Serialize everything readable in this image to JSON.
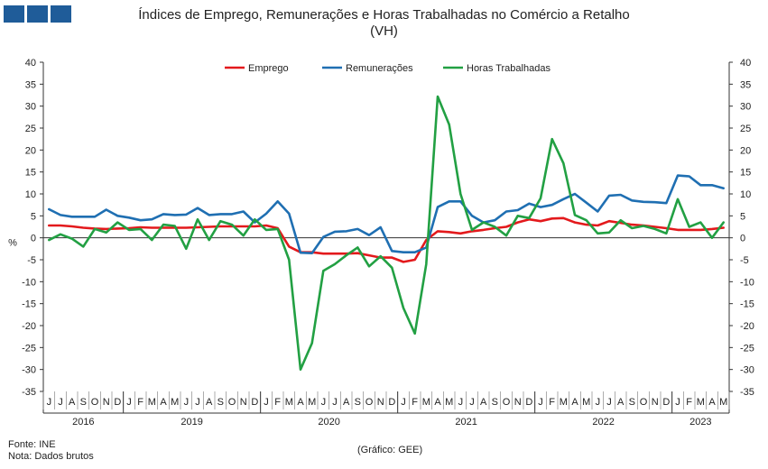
{
  "logo_colors": [
    "#1f5c99",
    "#1f5c99",
    "#1f5c99"
  ],
  "title_line1": "Índices de Emprego, Remunerações e Horas Trabalhadas no Comércio a Retalho",
  "title_line2": "(VH)",
  "source": "Fonte: INE",
  "note": "Nota: Dados brutos",
  "credit": "(Gráfico: GEE)",
  "chart_data": {
    "type": "line",
    "ylabel": "%",
    "ylim": [
      -35,
      40
    ],
    "yticks": [
      -35,
      -30,
      -25,
      -20,
      -15,
      -10,
      -5,
      0,
      5,
      10,
      15,
      20,
      25,
      30,
      35,
      40
    ],
    "legend_position": "top-center",
    "x": [
      "J",
      "J",
      "A",
      "S",
      "O",
      "N",
      "D",
      "J",
      "F",
      "M",
      "A",
      "M",
      "J",
      "J",
      "A",
      "S",
      "O",
      "N",
      "D",
      "J",
      "F",
      "M",
      "A",
      "M",
      "J",
      "J",
      "A",
      "S",
      "O",
      "N",
      "D",
      "J",
      "F",
      "M",
      "A",
      "M",
      "J",
      "J",
      "A",
      "S",
      "O",
      "N",
      "D",
      "J",
      "F",
      "M",
      "A",
      "M",
      "J",
      "J",
      "A",
      "S",
      "O",
      "N",
      "D",
      "J",
      "F",
      "M",
      "A",
      "M"
    ],
    "year_groups": [
      {
        "label": "2016",
        "start": 0,
        "end": 6
      },
      {
        "label": "2019",
        "start": 7,
        "end": 18
      },
      {
        "label": "2020",
        "start": 19,
        "end": 30
      },
      {
        "label": "2021",
        "start": 31,
        "end": 42
      },
      {
        "label": "2022",
        "start": 43,
        "end": 54
      },
      {
        "label": "2023",
        "start": 55,
        "end": 59
      }
    ],
    "series": [
      {
        "name": "Emprego",
        "color": "#e3191c",
        "values": [
          2.8,
          2.8,
          2.6,
          2.3,
          2.1,
          2.0,
          2.1,
          2.2,
          2.4,
          2.3,
          2.3,
          2.3,
          2.3,
          2.4,
          2.5,
          2.6,
          2.6,
          2.6,
          2.6,
          2.8,
          2.2,
          -2.0,
          -3.3,
          -3.3,
          -3.6,
          -3.6,
          -3.6,
          -3.5,
          -4.0,
          -4.5,
          -4.5,
          -5.5,
          -5.0,
          -0.5,
          1.5,
          1.3,
          1.0,
          1.5,
          1.8,
          2.2,
          2.5,
          3.5,
          4.2,
          3.8,
          4.4,
          4.5,
          3.5,
          3.0,
          2.8,
          3.8,
          3.4,
          3.0,
          2.8,
          2.5,
          2.2,
          1.8,
          1.8,
          1.8,
          2.0,
          2.3
        ]
      },
      {
        "name": "Remunerações",
        "color": "#1f6fb2",
        "values": [
          6.5,
          5.2,
          4.8,
          4.8,
          4.8,
          6.4,
          5.0,
          4.6,
          4.0,
          4.2,
          5.4,
          5.2,
          5.3,
          6.8,
          5.2,
          5.4,
          5.4,
          6.0,
          3.5,
          5.5,
          8.3,
          5.5,
          -3.4,
          -3.5,
          0.2,
          1.4,
          1.5,
          2.0,
          0.6,
          2.4,
          -3.0,
          -3.3,
          -3.3,
          -2.2,
          7.0,
          8.3,
          8.3,
          5.0,
          3.5,
          4.0,
          6.0,
          6.3,
          7.8,
          7.0,
          7.5,
          8.8,
          10.0,
          8.0,
          6.0,
          9.6,
          9.8,
          8.5,
          8.2,
          8.1,
          7.9,
          14.2,
          14.0,
          12.0,
          12.0,
          11.3
        ]
      },
      {
        "name": "Horas Trabalhadas",
        "color": "#22a043",
        "values": [
          -0.5,
          0.8,
          -0.2,
          -2.0,
          2.0,
          1.2,
          3.5,
          1.8,
          2.0,
          -0.5,
          3.0,
          2.7,
          -2.5,
          4.2,
          -0.5,
          3.8,
          3.0,
          0.5,
          4.2,
          1.8,
          2.0,
          -5.0,
          -30.0,
          -24.0,
          -7.5,
          -6.0,
          -4.0,
          -2.2,
          -6.5,
          -4.2,
          -6.8,
          -16.0,
          -21.8,
          -6.0,
          32.2,
          25.8,
          10.0,
          1.8,
          3.5,
          2.5,
          0.5,
          5.0,
          4.5,
          9.0,
          22.5,
          17.0,
          5.2,
          4.0,
          1.0,
          1.2,
          4.0,
          2.2,
          2.7,
          2.0,
          1.0,
          8.8,
          2.5,
          3.5,
          0.0,
          3.5
        ]
      }
    ]
  }
}
